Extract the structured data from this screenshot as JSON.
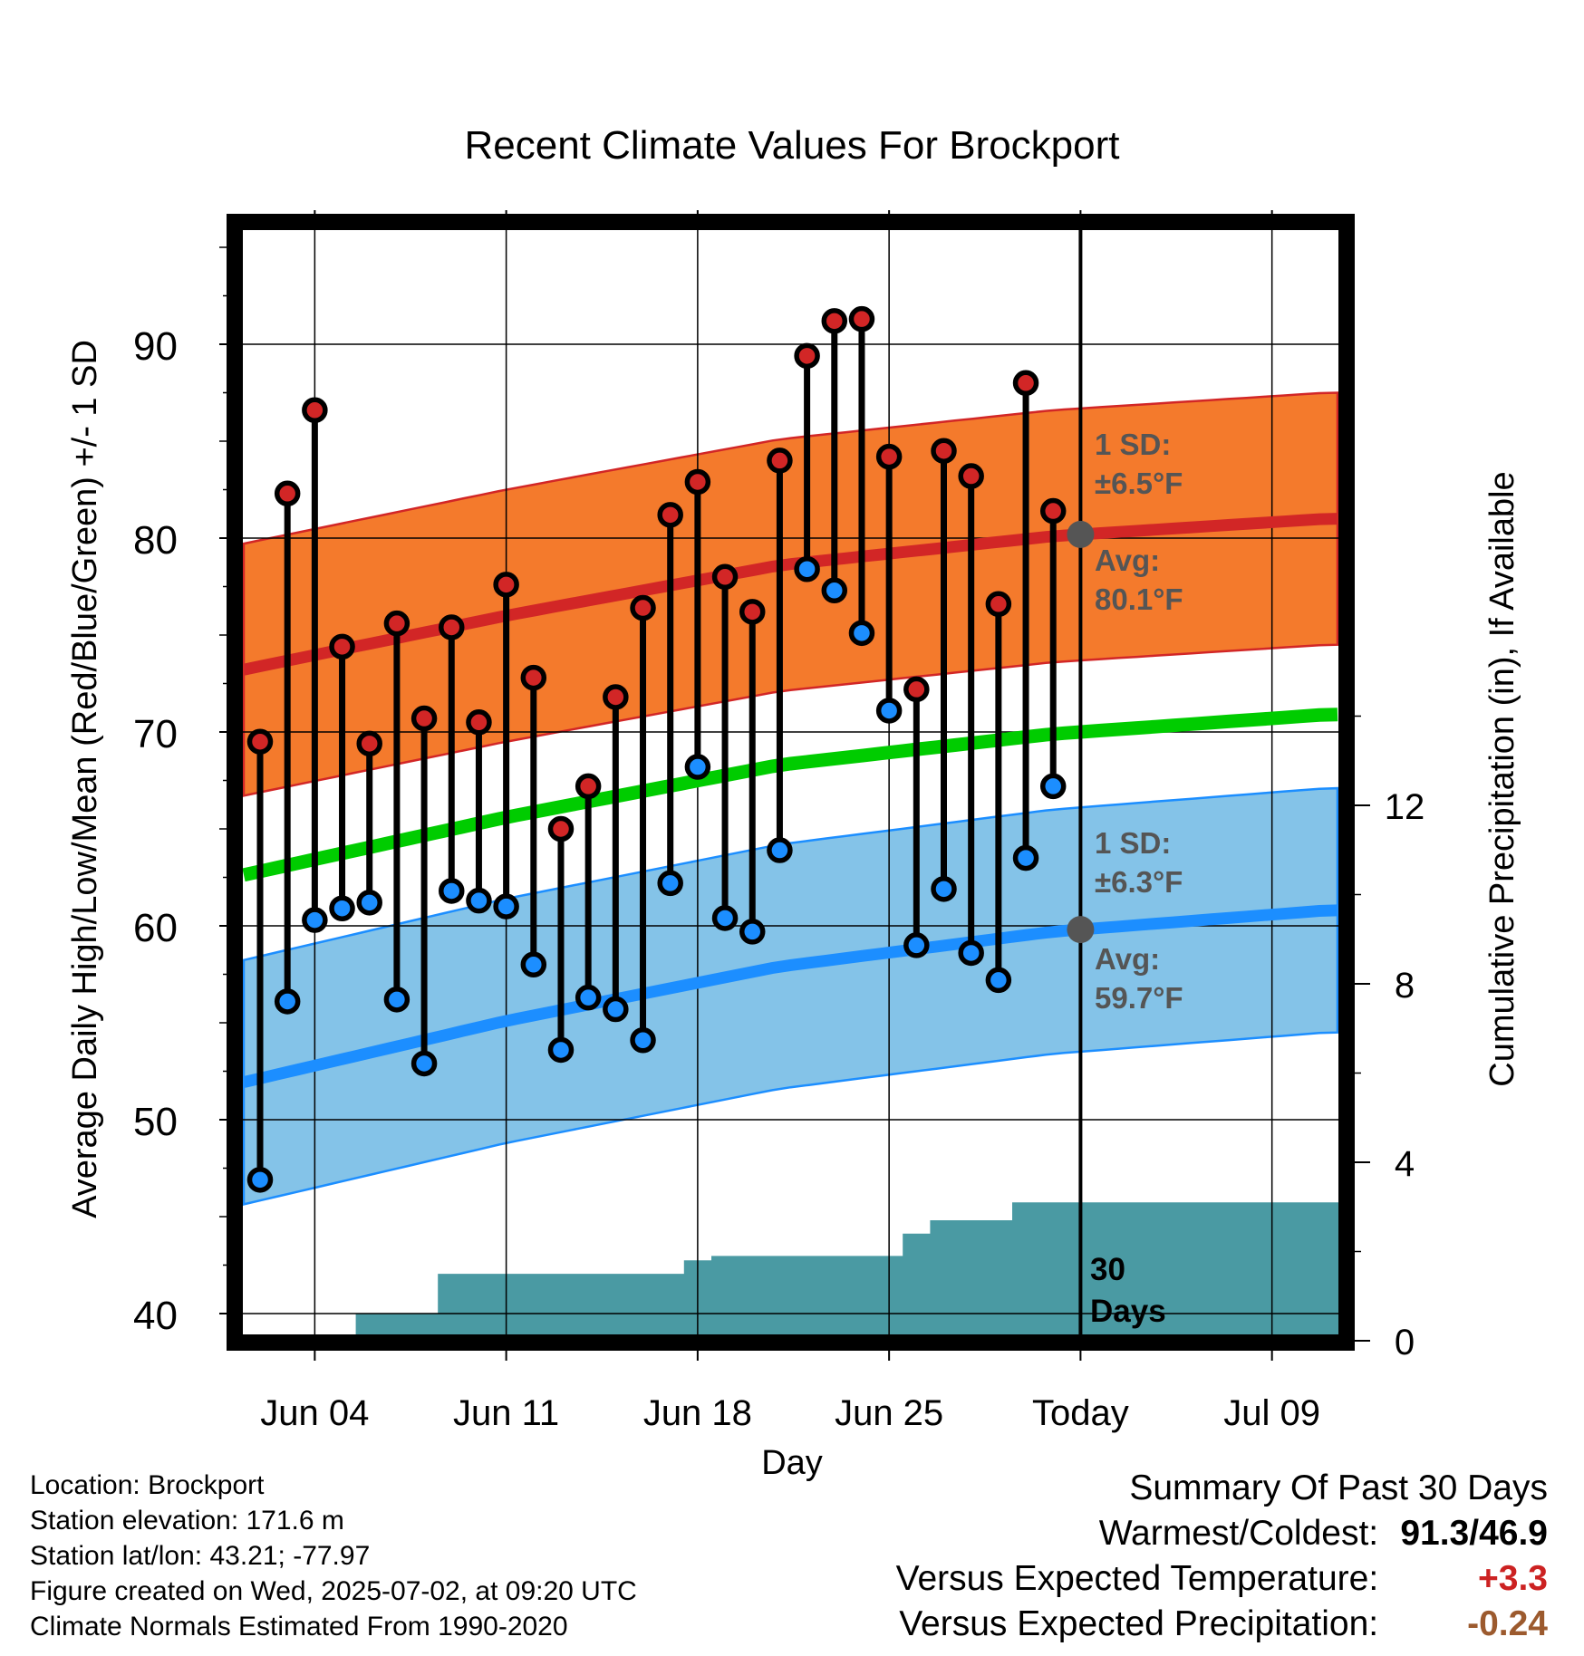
{
  "chart_data": {
    "type": "line",
    "title": "Recent Climate Values For Brockport",
    "xlabel": "Day",
    "ylabel": "Average Daily High/Low/Mean (Red/Blue/Green) +/- 1 SD",
    "y2label": "Cumulative Precipitation (in), If Available",
    "x_tick_labels": [
      "Jun 04",
      "Jun 11",
      "Jun 18",
      "Jun 25",
      "Today",
      "Jul 09"
    ],
    "y_ticks": [
      40,
      50,
      60,
      70,
      80,
      90
    ],
    "y2_ticks": [
      0,
      4,
      8,
      12
    ],
    "ylim": [
      39,
      96
    ],
    "grid": true,
    "today_marker": "30 Days",
    "annotations": {
      "high_sd": {
        "line1": "1 SD:",
        "line2": "±6.5°F"
      },
      "high_avg": {
        "line1": "Avg:",
        "line2": "80.1°F"
      },
      "low_sd": {
        "line1": "1 SD:",
        "line2": "±6.3°F"
      },
      "low_avg": {
        "line1": "Avg:",
        "line2": "59.7°F"
      }
    },
    "days": [
      "Jun 02",
      "Jun 03",
      "Jun 04",
      "Jun 05",
      "Jun 06",
      "Jun 07",
      "Jun 08",
      "Jun 09",
      "Jun 10",
      "Jun 11",
      "Jun 12",
      "Jun 13",
      "Jun 14",
      "Jun 15",
      "Jun 16",
      "Jun 17",
      "Jun 18",
      "Jun 19",
      "Jun 20",
      "Jun 21",
      "Jun 22",
      "Jun 23",
      "Jun 24",
      "Jun 25",
      "Jun 26",
      "Jun 27",
      "Jun 28",
      "Jun 29",
      "Jun 30",
      "Jul 01"
    ],
    "observed_high": [
      69.5,
      82.3,
      86.6,
      74.4,
      69.4,
      75.6,
      70.7,
      75.4,
      70.5,
      77.6,
      72.8,
      65.0,
      67.2,
      71.8,
      76.4,
      81.2,
      82.9,
      78.0,
      76.2,
      84.0,
      89.4,
      91.2,
      91.3,
      84.2,
      72.2,
      84.5,
      83.2,
      76.6,
      88.0,
      81.4
    ],
    "observed_low": [
      46.9,
      56.1,
      60.3,
      60.9,
      61.2,
      56.2,
      52.9,
      61.8,
      61.3,
      61.0,
      58.0,
      53.6,
      56.3,
      55.7,
      54.1,
      62.2,
      68.2,
      60.4,
      59.7,
      63.9,
      78.4,
      77.3,
      75.1,
      71.1,
      59.0,
      61.9,
      58.6,
      57.2,
      63.5,
      67.2
    ],
    "normal_days": [
      "Jun 01",
      "Jun 11",
      "Jun 21",
      "Jul 01",
      "Jul 11"
    ],
    "normal_high": [
      73.1,
      76.0,
      78.6,
      80.1,
      81.0
    ],
    "normal_high_sd": 6.5,
    "normal_low": [
      51.8,
      55.1,
      57.9,
      59.7,
      60.8
    ],
    "normal_low_sd": 6.3,
    "normal_mean": [
      62.5,
      65.6,
      68.3,
      69.9,
      70.9
    ],
    "cumulative_precip": [
      0,
      0,
      0,
      0,
      0.6,
      0.6,
      0.6,
      1.5,
      1.5,
      1.5,
      1.5,
      1.5,
      1.5,
      1.5,
      1.5,
      1.5,
      1.8,
      1.9,
      1.9,
      1.9,
      1.9,
      1.9,
      1.9,
      1.9,
      2.4,
      2.7,
      2.7,
      2.7,
      3.1,
      3.1,
      3.1
    ],
    "colors": {
      "high_band": "#f47a2c",
      "high_line": "#d22626",
      "low_band": "#84c3e8",
      "low_line": "#1c8eff",
      "mean_line": "#00cc00",
      "precip": "#4a9aa3",
      "annotation": "#555555"
    }
  },
  "info": {
    "location": "Location: Brockport",
    "elevation": "Station elevation: 171.6 m",
    "latlon": "Station lat/lon: 43.21; -77.97",
    "created": "Figure created on Wed, 2025-07-02, at 09:20 UTC",
    "normals": "Climate Normals Estimated From 1990-2020"
  },
  "summary": {
    "title": "Summary Of Past 30 Days",
    "warmest_label": "Warmest/Coldest:",
    "warmest_value": "91.3/46.9",
    "temp_label": "Versus Expected Temperature:",
    "temp_value": "+3.3",
    "precip_label": "Versus Expected Precipitation:",
    "precip_value": "-0.24"
  }
}
